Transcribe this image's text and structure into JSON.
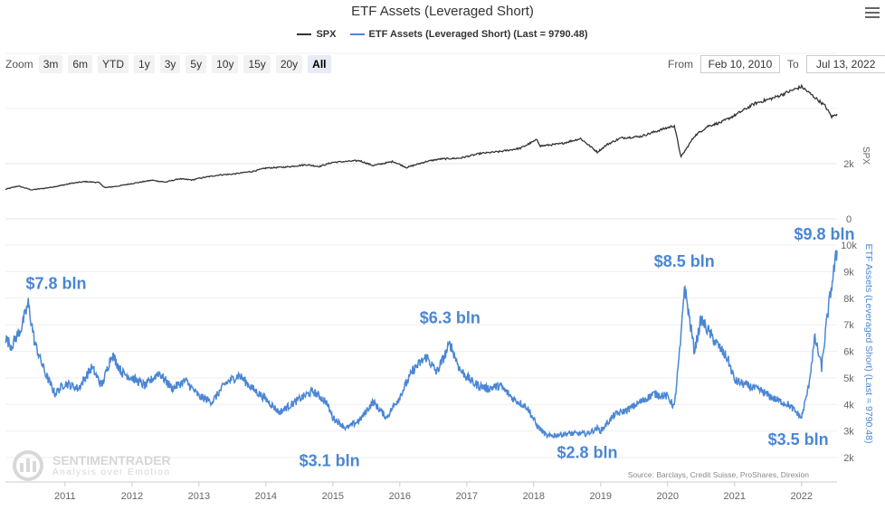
{
  "title": "ETF Assets (Leveraged Short)",
  "legend": [
    {
      "name": "SPX",
      "color": "#333333"
    },
    {
      "name": "ETF Assets (Leveraged Short) (Last = 9790.48)",
      "color": "#4a86d4"
    }
  ],
  "zoom": {
    "label": "Zoom",
    "buttons": [
      "3m",
      "6m",
      "YTD",
      "1y",
      "3y",
      "5y",
      "10y",
      "15y",
      "20y",
      "All"
    ],
    "active": "All"
  },
  "range": {
    "from_label": "From",
    "from_value": "Feb 10, 2010",
    "to_label": "To",
    "to_value": "Jul 13, 2022"
  },
  "watermark": {
    "name": "SENTIMENTRADER",
    "tagline": "Analysis over Emotion"
  },
  "source": "Source: Barclays, Credit Suisse, ProShares, Direxion",
  "chart_data": {
    "type": "line",
    "x_ticks": [
      "2011",
      "2012",
      "2013",
      "2014",
      "2015",
      "2016",
      "2017",
      "2018",
      "2019",
      "2020",
      "2021",
      "2022"
    ],
    "panels": [
      {
        "name": "SPX",
        "ylabel": "SPX",
        "y_ticks": [
          "0",
          "2k"
        ],
        "color": "#333333",
        "series": [
          [
            2010.11,
            1070
          ],
          [
            2010.3,
            1190
          ],
          [
            2010.5,
            1050
          ],
          [
            2010.7,
            1110
          ],
          [
            2010.9,
            1190
          ],
          [
            2011.1,
            1290
          ],
          [
            2011.3,
            1350
          ],
          [
            2011.5,
            1320
          ],
          [
            2011.6,
            1130
          ],
          [
            2011.8,
            1190
          ],
          [
            2012.0,
            1280
          ],
          [
            2012.3,
            1400
          ],
          [
            2012.5,
            1330
          ],
          [
            2012.7,
            1450
          ],
          [
            2012.9,
            1410
          ],
          [
            2013.0,
            1470
          ],
          [
            2013.3,
            1590
          ],
          [
            2013.5,
            1620
          ],
          [
            2013.8,
            1720
          ],
          [
            2014.0,
            1840
          ],
          [
            2014.3,
            1880
          ],
          [
            2014.6,
            1960
          ],
          [
            2014.8,
            1900
          ],
          [
            2015.0,
            2050
          ],
          [
            2015.4,
            2110
          ],
          [
            2015.6,
            1930
          ],
          [
            2015.9,
            2080
          ],
          [
            2016.1,
            1860
          ],
          [
            2016.4,
            2080
          ],
          [
            2016.6,
            2170
          ],
          [
            2016.9,
            2200
          ],
          [
            2017.2,
            2370
          ],
          [
            2017.5,
            2440
          ],
          [
            2017.8,
            2560
          ],
          [
            2018.05,
            2870
          ],
          [
            2018.1,
            2640
          ],
          [
            2018.4,
            2720
          ],
          [
            2018.7,
            2910
          ],
          [
            2018.95,
            2420
          ],
          [
            2019.1,
            2700
          ],
          [
            2019.3,
            2930
          ],
          [
            2019.6,
            2990
          ],
          [
            2019.9,
            3230
          ],
          [
            2020.1,
            3380
          ],
          [
            2020.2,
            2240
          ],
          [
            2020.4,
            3000
          ],
          [
            2020.6,
            3360
          ],
          [
            2020.8,
            3500
          ],
          [
            2021.0,
            3750
          ],
          [
            2021.3,
            4180
          ],
          [
            2021.6,
            4400
          ],
          [
            2021.9,
            4700
          ],
          [
            2022.0,
            4790
          ],
          [
            2022.2,
            4400
          ],
          [
            2022.35,
            4100
          ],
          [
            2022.45,
            3700
          ],
          [
            2022.53,
            3800
          ]
        ]
      },
      {
        "name": "ETF Assets (Leveraged Short)",
        "ylabel": "ETF Assets (Leveraged Short) (Last = 9790.48)",
        "y_ticks": [
          "2k",
          "3k",
          "4k",
          "5k",
          "6k",
          "7k",
          "8k",
          "9k",
          "10k"
        ],
        "color": "#4a86d4",
        "series": [
          [
            2010.11,
            6500
          ],
          [
            2010.2,
            6200
          ],
          [
            2010.35,
            6900
          ],
          [
            2010.45,
            7800
          ],
          [
            2010.55,
            6300
          ],
          [
            2010.7,
            5200
          ],
          [
            2010.85,
            4400
          ],
          [
            2011.0,
            4800
          ],
          [
            2011.2,
            4600
          ],
          [
            2011.4,
            5400
          ],
          [
            2011.55,
            4700
          ],
          [
            2011.7,
            5900
          ],
          [
            2011.85,
            5200
          ],
          [
            2012.0,
            5000
          ],
          [
            2012.2,
            4700
          ],
          [
            2012.4,
            5200
          ],
          [
            2012.6,
            4600
          ],
          [
            2012.8,
            4900
          ],
          [
            2013.0,
            4300
          ],
          [
            2013.2,
            4100
          ],
          [
            2013.4,
            4800
          ],
          [
            2013.6,
            5100
          ],
          [
            2013.8,
            4600
          ],
          [
            2014.0,
            4200
          ],
          [
            2014.2,
            3700
          ],
          [
            2014.5,
            4200
          ],
          [
            2014.7,
            4500
          ],
          [
            2014.9,
            4100
          ],
          [
            2015.0,
            3500
          ],
          [
            2015.2,
            3100
          ],
          [
            2015.4,
            3400
          ],
          [
            2015.6,
            4100
          ],
          [
            2015.8,
            3500
          ],
          [
            2016.0,
            4300
          ],
          [
            2016.2,
            5300
          ],
          [
            2016.4,
            5800
          ],
          [
            2016.55,
            5200
          ],
          [
            2016.7,
            6000
          ],
          [
            2016.75,
            6300
          ],
          [
            2016.9,
            5300
          ],
          [
            2017.1,
            4800
          ],
          [
            2017.3,
            4600
          ],
          [
            2017.5,
            4700
          ],
          [
            2017.7,
            4200
          ],
          [
            2017.9,
            3900
          ],
          [
            2018.05,
            3200
          ],
          [
            2018.2,
            2800
          ],
          [
            2018.5,
            2900
          ],
          [
            2018.8,
            2900
          ],
          [
            2018.95,
            3100
          ],
          [
            2019.0,
            3000
          ],
          [
            2019.2,
            3600
          ],
          [
            2019.4,
            3800
          ],
          [
            2019.6,
            4100
          ],
          [
            2019.8,
            4400
          ],
          [
            2020.0,
            4300
          ],
          [
            2020.1,
            3900
          ],
          [
            2020.2,
            6500
          ],
          [
            2020.25,
            8500
          ],
          [
            2020.4,
            6000
          ],
          [
            2020.5,
            7200
          ],
          [
            2020.7,
            6400
          ],
          [
            2020.9,
            5700
          ],
          [
            2021.0,
            4900
          ],
          [
            2021.2,
            4700
          ],
          [
            2021.4,
            4500
          ],
          [
            2021.6,
            4200
          ],
          [
            2021.8,
            4000
          ],
          [
            2022.0,
            3500
          ],
          [
            2022.1,
            4600
          ],
          [
            2022.2,
            6500
          ],
          [
            2022.3,
            5400
          ],
          [
            2022.38,
            7200
          ],
          [
            2022.45,
            8500
          ],
          [
            2022.53,
            9790
          ]
        ]
      }
    ],
    "annotations": [
      {
        "text": "$7.8 bln",
        "x": 2010.45,
        "y": 7800
      },
      {
        "text": "$3.1 bln",
        "x": 2014.95,
        "y": 3100
      },
      {
        "text": "$6.3 bln",
        "x": 2016.75,
        "y": 6300
      },
      {
        "text": "$2.8 bln",
        "x": 2018.8,
        "y": 2800
      },
      {
        "text": "$8.5 bln",
        "x": 2020.25,
        "y": 8500
      },
      {
        "text": "$3.5 bln",
        "x": 2021.95,
        "y": 3500
      },
      {
        "text": "$9.8 bln",
        "x": 2022.53,
        "y": 9790
      }
    ]
  }
}
